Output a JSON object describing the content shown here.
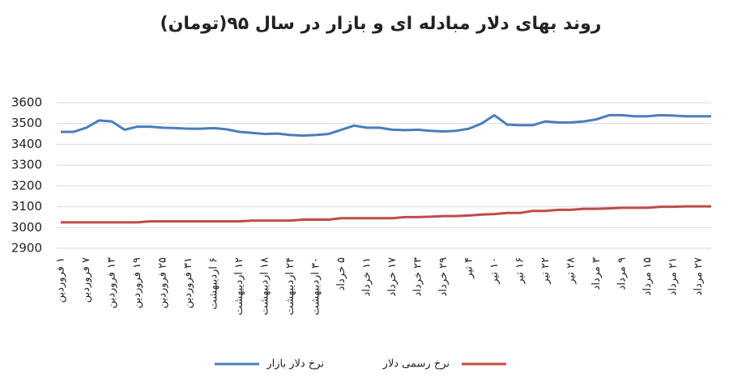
{
  "chart_data": {
    "type": "line",
    "title": "روند بهای دلار مبادله ای و بازار در سال ۹۵(تومان)",
    "categories": [
      "۱ فروردین",
      null,
      "۷ فروردین",
      null,
      "۱۳ فروردین",
      null,
      "۱۹ فروردین",
      null,
      "۲۵ فروردین",
      null,
      "۳۱ فروردین",
      null,
      "۶ اردیبهشت",
      null,
      "۱۲ اردیبهشت",
      null,
      "۱۸ اردیبهشت",
      null,
      "۲۴ اردیبهشت",
      null,
      "۳۰ اردیبهشت",
      null,
      "۵ خرداد",
      null,
      "۱۱ خرداد",
      null,
      "۱۷ خرداد",
      null,
      "۲۳ خرداد",
      null,
      "۲۹ خرداد",
      null,
      "۴ تیر",
      null,
      "۱۰ تیر",
      null,
      "۱۶ تیر",
      null,
      "۲۲ تیر",
      null,
      "۲۸ تیر",
      null,
      "۳ مرداد",
      null,
      "۹ مرداد",
      null,
      "۱۵ مرداد",
      null,
      "۲۱ مرداد",
      null,
      "۲۷ مرداد",
      null
    ],
    "series": [
      {
        "name": "نرخ دلار بازار",
        "color": "#4a7ebb",
        "values": [
          3460,
          3460,
          3480,
          3515,
          3510,
          3470,
          3485,
          3485,
          3480,
          3478,
          3475,
          3475,
          3478,
          3472,
          3460,
          3455,
          3450,
          3452,
          3445,
          3442,
          3445,
          3450,
          3470,
          3490,
          3480,
          3480,
          3470,
          3468,
          3470,
          3465,
          3462,
          3465,
          3475,
          3500,
          3540,
          3495,
          3492,
          3492,
          3510,
          3505,
          3505,
          3510,
          3520,
          3540,
          3540,
          3535,
          3535,
          3540,
          3538,
          3535,
          3535,
          3535
        ]
      },
      {
        "name": "نرخ رسمی دلار",
        "color": "#be4b48",
        "values": [
          3025,
          3025,
          3025,
          3025,
          3025,
          3025,
          3025,
          3030,
          3030,
          3030,
          3030,
          3030,
          3030,
          3030,
          3030,
          3033,
          3033,
          3033,
          3033,
          3038,
          3038,
          3038,
          3045,
          3045,
          3045,
          3045,
          3045,
          3050,
          3050,
          3052,
          3055,
          3055,
          3058,
          3062,
          3065,
          3070,
          3070,
          3080,
          3080,
          3085,
          3085,
          3090,
          3090,
          3092,
          3095,
          3095,
          3095,
          3100,
          3100,
          3102,
          3102,
          3102
        ]
      }
    ],
    "ylim": [
      2900,
      3600
    ],
    "yticks": [
      2900,
      3000,
      3100,
      3200,
      3300,
      3400,
      3500,
      3600
    ],
    "grid": true
  }
}
